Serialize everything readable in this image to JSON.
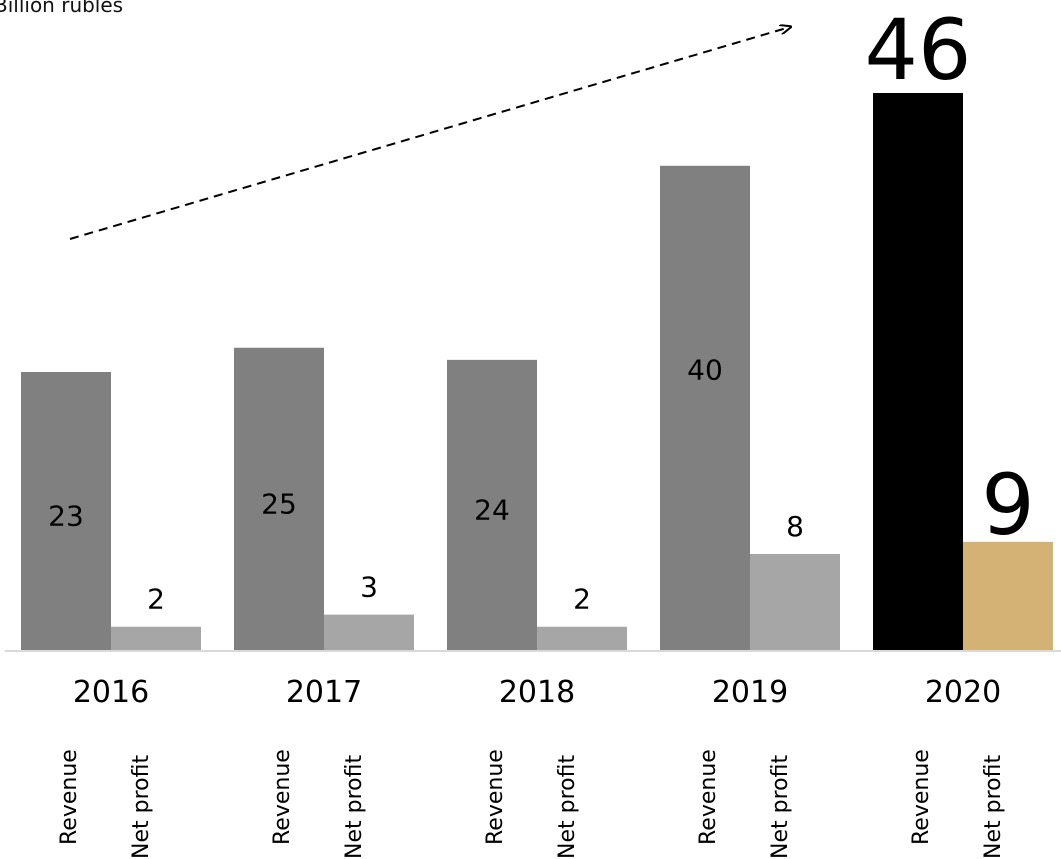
{
  "unit": "Billion rubles",
  "chart_data": {
    "type": "bar",
    "categories": [
      "2016",
      "2017",
      "2018",
      "2019",
      "2020"
    ],
    "series": [
      {
        "name": "Revenue",
        "values": [
          23,
          25,
          24,
          40,
          46
        ]
      },
      {
        "name": "Net profit",
        "values": [
          2,
          3,
          2,
          8,
          9
        ]
      }
    ],
    "ylabel": "Billion rubles",
    "ylim": [
      0,
      46
    ],
    "grid": false,
    "legend": "none",
    "highlight_category": "2020",
    "colors": {
      "revenue": "#808080",
      "net_profit": "#a6a6a6",
      "revenue_highlight": "#000000",
      "net_profit_highlight": "#d4b175",
      "baseline": "#d9d9d9",
      "trend_arrow": "#000000"
    }
  }
}
